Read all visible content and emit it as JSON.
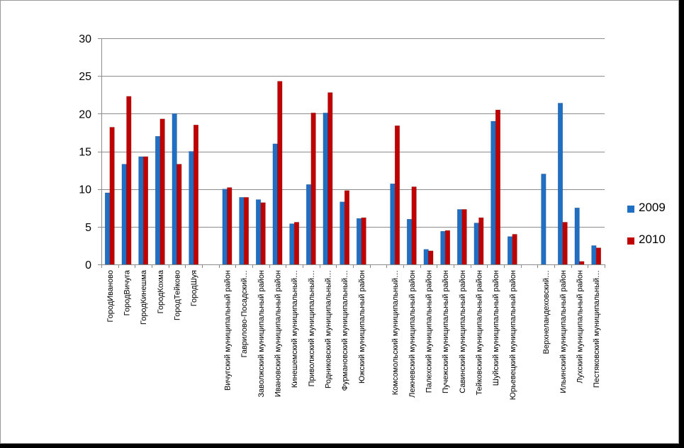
{
  "chart_data": {
    "type": "bar",
    "title": "",
    "xlabel": "",
    "ylabel": "",
    "ylim": [
      0,
      30
    ],
    "yticks": [
      "0",
      "5",
      "10",
      "15",
      "20",
      "25",
      "30"
    ],
    "grid": true,
    "legend_position": "right",
    "categories": [
      "ГородИваново",
      "ГородВичуга",
      "ГородКинешма",
      "ГородКохма",
      "ГородТейково",
      "ГородШуя",
      "",
      "Вичугский муниципальный район",
      "Гаврилово-Посадский…",
      "Заволжский муниципальный район",
      "Ивановский муниципальный район",
      "Кинешемский муниципальный…",
      "Приволжский муниципальный…",
      "Родниковский муниципальный…",
      "Фурмановский муниципальный…",
      "Южский муниципальный район",
      "",
      "Комсомольский муниципальный…",
      "Лежневский муниципальный район",
      "Палехский муниципальный район",
      "Пучежский муниципальный район",
      "Савинский муниципальный район",
      "Тейковский муниципальный район",
      "Шуйский муниципальный район",
      "Юрьевецкий муниципальный район",
      "",
      "Верхнеландеховский…",
      "Ильинский муниципальный район",
      "Лухский муниципальный район",
      "Пестяковский муниципальный…"
    ],
    "series": [
      {
        "name": "2009",
        "color": "#1F6FC5",
        "values": [
          9.5,
          13.3,
          14.3,
          17.0,
          20.0,
          15.0,
          null,
          10.0,
          8.9,
          8.6,
          16.0,
          5.4,
          10.6,
          20.1,
          8.3,
          6.1,
          null,
          10.7,
          6.0,
          2.0,
          4.4,
          7.3,
          5.5,
          19.0,
          3.7,
          null,
          12.0,
          21.4,
          7.5,
          2.5
        ]
      },
      {
        "name": "2010",
        "color": "#C00000",
        "values": [
          18.2,
          22.3,
          14.3,
          19.3,
          13.3,
          18.5,
          null,
          10.2,
          8.9,
          8.2,
          24.3,
          5.6,
          20.1,
          22.8,
          9.8,
          6.2,
          null,
          18.4,
          10.3,
          1.8,
          4.5,
          7.3,
          6.2,
          20.5,
          4.0,
          null,
          null,
          5.6,
          0.4,
          2.2
        ]
      }
    ]
  }
}
